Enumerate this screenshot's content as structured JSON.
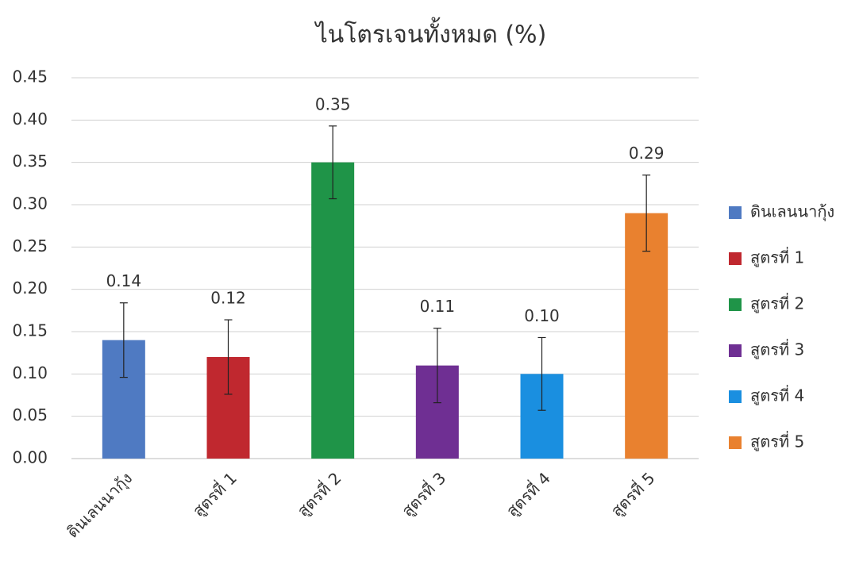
{
  "chart_data": {
    "type": "bar",
    "title": "ไนโตรเจนทั้งหมด (%)",
    "categories": [
      "ดินเลนนากุ้ง",
      "สูตรที่ 1",
      "สูตรที่ 2",
      "สูตรที่ 3",
      "สูตรที่ 4",
      "สูตรที่ 5"
    ],
    "values": [
      0.14,
      0.12,
      0.35,
      0.11,
      0.1,
      0.29
    ],
    "value_labels": [
      "0.14",
      "0.12",
      "0.35",
      "0.11",
      "0.10",
      "0.29"
    ],
    "errors": [
      0.044,
      0.044,
      0.043,
      0.044,
      0.043,
      0.045
    ],
    "colors": [
      "#4f7ac2",
      "#c0282f",
      "#1f9448",
      "#6f2f93",
      "#1a8fe0",
      "#e9812f"
    ],
    "ylim": [
      0,
      0.45
    ],
    "yticks": [
      {
        "value": 0,
        "label": "0.00"
      },
      {
        "value": 0.05,
        "label": "0.05"
      },
      {
        "value": 0.1,
        "label": "0.10"
      },
      {
        "value": 0.15,
        "label": "0.15"
      },
      {
        "value": 0.2,
        "label": "0.20"
      },
      {
        "value": 0.25,
        "label": "0.25"
      },
      {
        "value": 0.3,
        "label": "0.30"
      },
      {
        "value": 0.35,
        "label": "0.35"
      },
      {
        "value": 0.4,
        "label": "0.40"
      },
      {
        "value": 0.45,
        "label": "0.45"
      }
    ],
    "grid": true,
    "legend": "right"
  }
}
